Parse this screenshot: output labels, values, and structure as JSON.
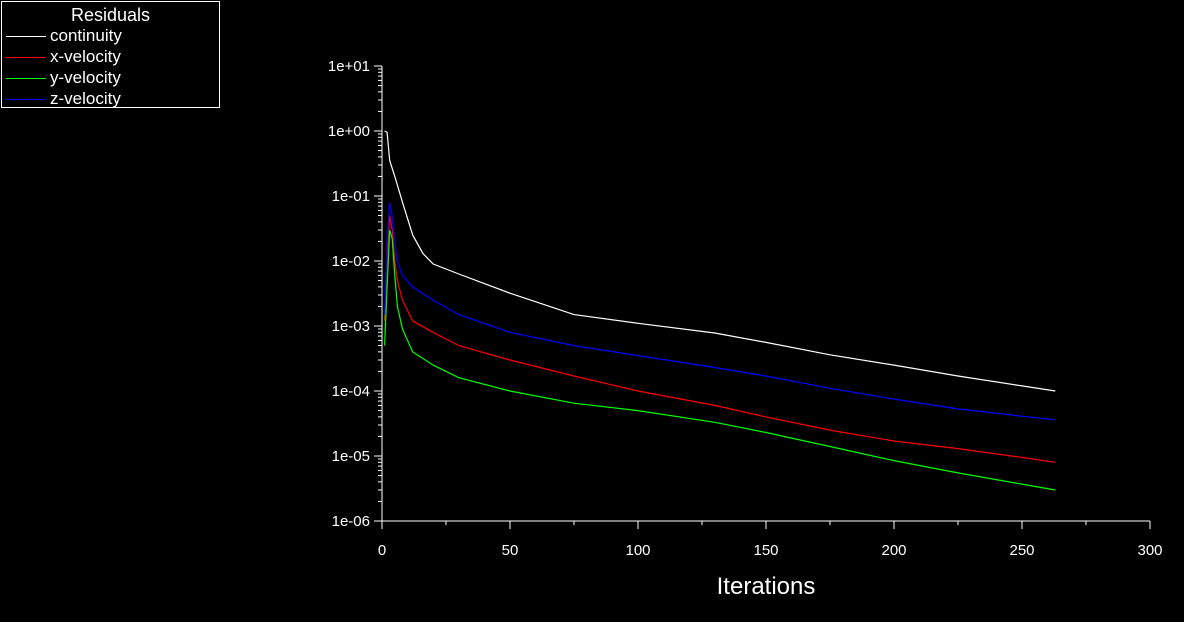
{
  "legend": {
    "title": "Residuals",
    "items": [
      {
        "label": "continuity",
        "color": "#ffffff"
      },
      {
        "label": "x-velocity",
        "color": "#ff0000"
      },
      {
        "label": "y-velocity",
        "color": "#00ff00"
      },
      {
        "label": "z-velocity",
        "color": "#0000ff"
      }
    ]
  },
  "chart_data": {
    "type": "line",
    "title": "",
    "xlabel": "Iterations",
    "ylabel": "",
    "yscale": "log",
    "xlim": [
      0,
      300
    ],
    "ylim": [
      1e-06,
      10
    ],
    "xticks": [
      0,
      50,
      100,
      150,
      200,
      250,
      300
    ],
    "xtick_labels": [
      "0",
      "50",
      "100",
      "150",
      "200",
      "250",
      "300"
    ],
    "yticks": [
      1e-06,
      1e-05,
      0.0001,
      0.001,
      0.01,
      0.1,
      1,
      10
    ],
    "ytick_labels": [
      "1e-06",
      "1e-05",
      "1e-04",
      "1e-03",
      "1e-02",
      "1e-01",
      "1e+00",
      "1e+01"
    ],
    "legend_position": "top-left",
    "grid": false,
    "background": "#000000",
    "series": [
      {
        "name": "continuity",
        "color": "#ffffff",
        "x": [
          1,
          2,
          3,
          5,
          8,
          12,
          16,
          20,
          30,
          50,
          75,
          100,
          130,
          150,
          175,
          200,
          225,
          250,
          263
        ],
        "y": [
          1,
          0.95,
          0.35,
          0.2,
          0.08,
          0.025,
          0.013,
          0.009,
          0.0063,
          0.0032,
          0.0015,
          0.0011,
          0.00078,
          0.00056,
          0.00036,
          0.00025,
          0.00017,
          0.00012,
          0.0001
        ]
      },
      {
        "name": "x-velocity",
        "color": "#ff0000",
        "x": [
          1,
          2,
          3,
          4,
          5,
          6,
          8,
          12,
          20,
          30,
          50,
          75,
          100,
          130,
          150,
          175,
          200,
          225,
          250,
          263
        ],
        "y": [
          0.0012,
          0.012,
          0.05,
          0.03,
          0.01,
          0.005,
          0.0025,
          0.0012,
          0.0008,
          0.0005,
          0.0003,
          0.00017,
          0.0001,
          6e-05,
          4e-05,
          2.5e-05,
          1.7e-05,
          1.3e-05,
          9.5e-06,
          8e-06
        ]
      },
      {
        "name": "y-velocity",
        "color": "#00ff00",
        "x": [
          1,
          2,
          3,
          4,
          5,
          6,
          8,
          12,
          20,
          30,
          50,
          75,
          100,
          130,
          150,
          175,
          200,
          225,
          250,
          263
        ],
        "y": [
          0.0005,
          0.004,
          0.03,
          0.022,
          0.006,
          0.002,
          0.0009,
          0.0004,
          0.00025,
          0.00016,
          0.0001,
          6.5e-05,
          5e-05,
          3.3e-05,
          2.3e-05,
          1.4e-05,
          8.5e-06,
          5.5e-06,
          3.7e-06,
          3e-06
        ]
      },
      {
        "name": "z-velocity",
        "color": "#0000ff",
        "x": [
          1,
          2,
          3,
          4,
          5,
          6,
          8,
          12,
          20,
          30,
          50,
          75,
          100,
          130,
          150,
          175,
          200,
          225,
          250,
          263
        ],
        "y": [
          0.0015,
          0.02,
          0.08,
          0.05,
          0.02,
          0.01,
          0.006,
          0.004,
          0.0025,
          0.0015,
          0.0008,
          0.0005,
          0.00035,
          0.00023,
          0.00017,
          0.00011,
          7.5e-05,
          5.3e-05,
          4.1e-05,
          3.6e-05
        ]
      }
    ]
  }
}
